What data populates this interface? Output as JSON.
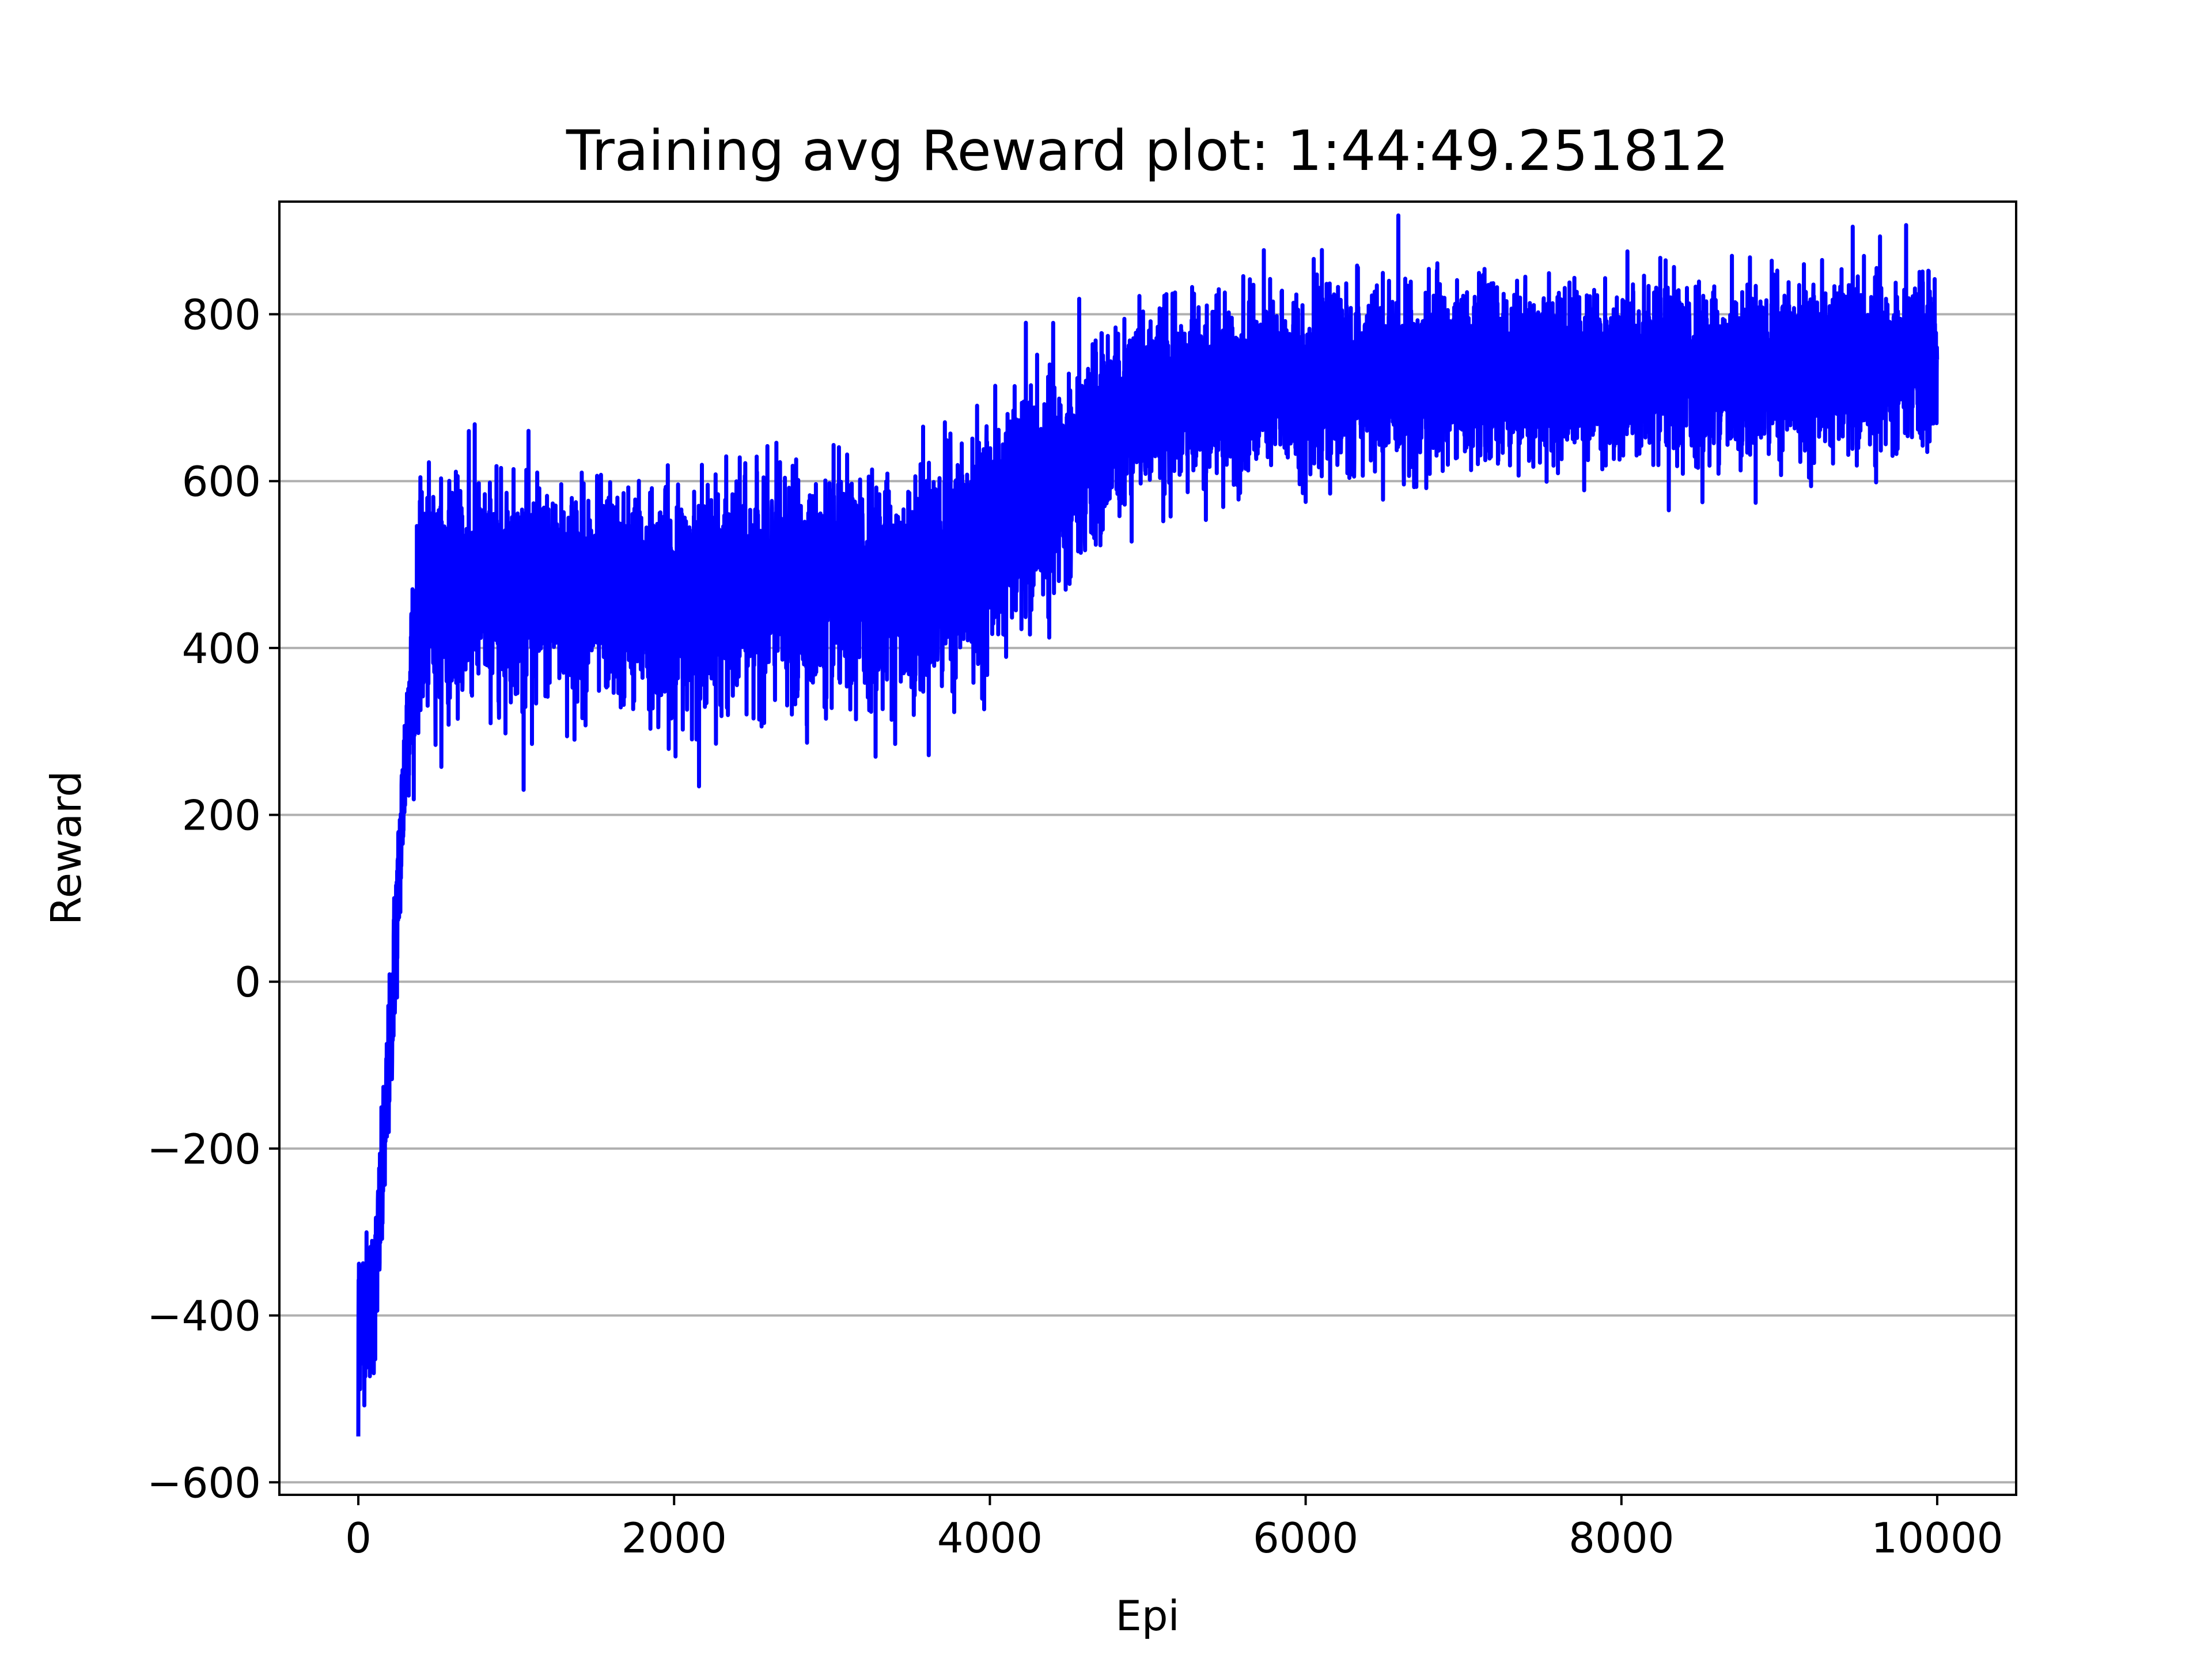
{
  "chart_data": {
    "type": "line",
    "title": "Training avg Reward plot: 1:44:49.251812",
    "xlabel": "Epi",
    "ylabel": "Reward",
    "xlim": [
      -500,
      10500
    ],
    "ylim": [
      -615,
      935
    ],
    "xticks": [
      0,
      2000,
      4000,
      6000,
      8000,
      10000
    ],
    "xtick_labels": [
      "0",
      "2000",
      "4000",
      "6000",
      "8000",
      "10000"
    ],
    "yticks": [
      -600,
      -400,
      -200,
      0,
      200,
      400,
      600,
      800
    ],
    "ytick_labels": [
      "−600",
      "−400",
      "−200",
      "0",
      "200",
      "400",
      "600",
      "800"
    ],
    "grid": "y",
    "series": [
      {
        "color": "#0000ff",
        "points_per_episode": 1,
        "n_episodes": 10000,
        "trend": [
          [
            0,
            -400
          ],
          [
            100,
            -380
          ],
          [
            150,
            -250
          ],
          [
            200,
            -80
          ],
          [
            250,
            100
          ],
          [
            300,
            280
          ],
          [
            350,
            400
          ],
          [
            400,
            450
          ],
          [
            600,
            470
          ],
          [
            1000,
            470
          ],
          [
            2000,
            460
          ],
          [
            3000,
            470
          ],
          [
            3500,
            480
          ],
          [
            3800,
            500
          ],
          [
            4000,
            530
          ],
          [
            4300,
            580
          ],
          [
            4600,
            620
          ],
          [
            4800,
            670
          ],
          [
            5000,
            700
          ],
          [
            5500,
            710
          ],
          [
            6000,
            720
          ],
          [
            7000,
            730
          ],
          [
            8000,
            730
          ],
          [
            9000,
            735
          ],
          [
            10000,
            740
          ]
        ],
        "noise_band": [
          [
            0,
            80
          ],
          [
            300,
            80
          ],
          [
            400,
            110
          ],
          [
            3000,
            110
          ],
          [
            4000,
            120
          ],
          [
            5000,
            90
          ],
          [
            10000,
            85
          ]
        ],
        "extremes": [
          [
            0,
            -545
          ],
          [
            700,
            660
          ],
          [
            1100,
            285
          ],
          [
            1900,
            305
          ],
          [
            3400,
            285
          ],
          [
            5450,
            830
          ],
          [
            6000,
            575
          ],
          [
            8700,
            870
          ],
          [
            8300,
            565
          ]
        ]
      }
    ],
    "line_color": "#0000ff",
    "grid_color": "#b0b0b0"
  }
}
